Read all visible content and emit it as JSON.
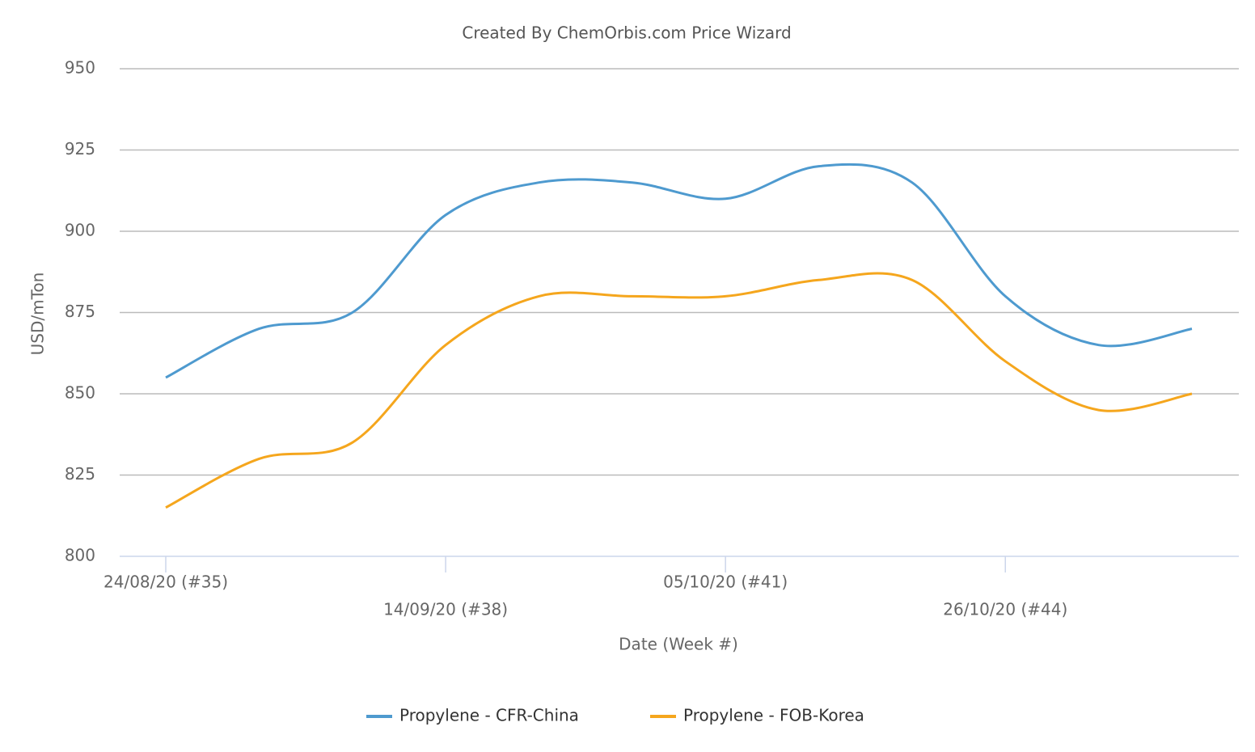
{
  "chart_data": {
    "type": "line",
    "title": "Created By ChemOrbis.com Price Wizard",
    "y_label": "USD/mTon",
    "x_label": "Date (Week #)",
    "categories": [
      "24/08/20 (#35)",
      null,
      null,
      "14/09/20 (#38)",
      null,
      null,
      "05/10/20 (#41)",
      null,
      null,
      "26/10/20 (#44)",
      null,
      null
    ],
    "series": [
      {
        "name": "Propylene - CFR-China",
        "color": "#4e9acf",
        "values": [
          855,
          870,
          875,
          905,
          915,
          915,
          910,
          920,
          915,
          880,
          865,
          870
        ]
      },
      {
        "name": "Propylene - FOB-Korea",
        "color": "#f5a61d",
        "values": [
          815,
          830,
          835,
          865,
          880,
          880,
          880,
          885,
          885,
          860,
          845,
          850
        ]
      }
    ],
    "ylim": [
      800,
      950
    ],
    "yticks": [
      800,
      825,
      850,
      875,
      900,
      925,
      950
    ],
    "grid": true
  }
}
